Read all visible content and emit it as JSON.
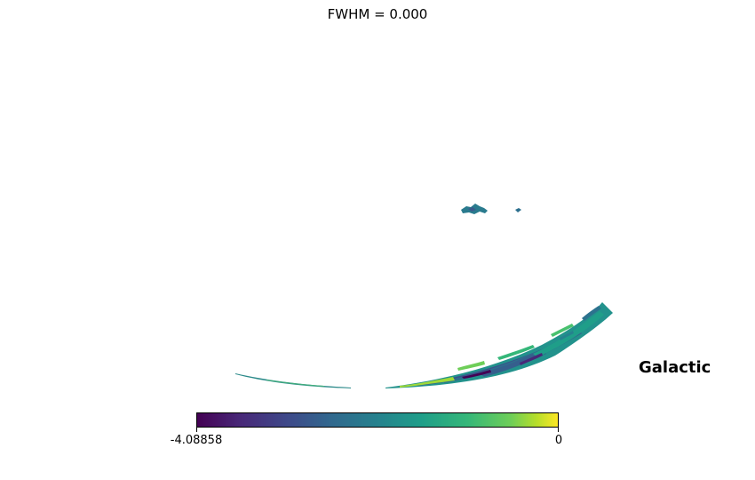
{
  "title": "FWHM = 0.000",
  "coord_system": "Galactic",
  "colorbar": {
    "colormap": "viridis",
    "min_label": "-4.08858",
    "max_label": "0",
    "min": -4.08858,
    "max": 0
  },
  "chart_data": {
    "type": "heatmap",
    "projection": "mollweide",
    "title": "FWHM = 0.000",
    "value_range": [
      -4.08858,
      0
    ],
    "colormap": "viridis"
  }
}
